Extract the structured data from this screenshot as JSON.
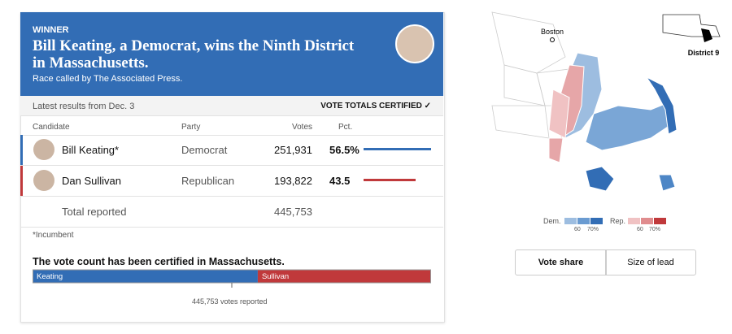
{
  "header": {
    "kicker": "WINNER",
    "title": "Bill Keating, a Democrat, wins the Ninth District in Massachusetts.",
    "source": "Race called by The Associated Press."
  },
  "status": {
    "latest": "Latest results from Dec. 3",
    "certified": "VOTE TOTALS CERTIFIED ✓"
  },
  "table": {
    "columns": [
      "Candidate",
      "Party",
      "Votes",
      "Pct."
    ],
    "candidates": [
      {
        "name": "Bill Keating*",
        "party": "Democrat",
        "votes": {
          "value": 251931,
          "label": "251,931"
        },
        "pct": {
          "value": 56.5,
          "label": "56.5%"
        },
        "color": "#326db5"
      },
      {
        "name": "Dan Sullivan",
        "party": "Republican",
        "votes": {
          "value": 193822,
          "label": "193,822"
        },
        "pct": {
          "value": 43.5,
          "label": "43.5"
        },
        "color": "#c0393b"
      }
    ],
    "total": {
      "label": "Total reported",
      "votes": {
        "value": 445753,
        "label": "445,753"
      }
    },
    "footnote": "*Incumbent"
  },
  "summary": {
    "title": "The vote count has been certified in Massachusetts.",
    "bar_labels": [
      "Keating",
      "Sullivan"
    ],
    "reported": "445,753 votes reported"
  },
  "map": {
    "city": "Boston",
    "district": "District 9",
    "legend": {
      "dem": "Dem.",
      "rep": "Rep.",
      "low": "60",
      "high": "70%"
    },
    "tabs": [
      "Vote share",
      "Size of lead"
    ]
  }
}
